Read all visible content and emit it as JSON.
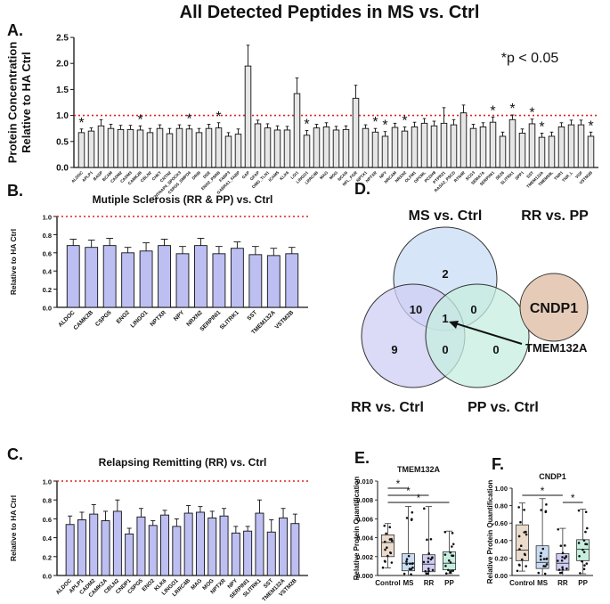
{
  "figure": {
    "title": "All Detected Peptides in MS vs. Ctrl",
    "sig_note": "*p < 0.05",
    "sig_marker": "*",
    "colors": {
      "bar_light": "#e6e6e6",
      "bar_purple": "#bdbff2",
      "ref_line": "#e0201b",
      "box_brown": "#eadbcc",
      "box_blue": "#c8dcf4",
      "box_purple": "#cfcdf4",
      "box_teal": "#c6eedf",
      "pp_circle": "#e6ccb8"
    }
  },
  "chart_data": [
    {
      "panel": "A.",
      "type": "bar",
      "ylabel": "Protein Concentration Relative to HA Ctrl",
      "ylim": [
        0,
        2.5
      ],
      "yticks": [
        "0.0",
        "0.5",
        "1.0",
        "1.5",
        "2.0",
        "2.5"
      ],
      "reference_line": 1.0,
      "categories": [
        "ALDOC",
        "APLP1",
        "BASP",
        "BCAM",
        "CADM2",
        "CADM3",
        "CAMK2B",
        "CBLN2",
        "CHKT",
        "CNTN2",
        "CNTNAP4_SPOCK3",
        "CSPG5_SMPD4",
        "DRIB",
        "DSE",
        "ENO2_PSRB",
        "FABP3",
        "GABRA1_FABP",
        "GAP",
        "GFAP",
        "OMG_TLN1",
        "ICAM5",
        "KLK6",
        "LGI1",
        "LINGO1",
        "LRRC4B",
        "MAG",
        "MOG",
        "NCAN",
        "NFL_FGR",
        "NPTX1",
        "NPTXR",
        "NPY",
        "NRCAM",
        "NRXN2",
        "OLFM1",
        "OPCML",
        "PCDH8",
        "PTPRZ1",
        "RASA2_PSCD",
        "RTN4R",
        "SCG3",
        "SEMA7A",
        "SERPINI1",
        "SEZ6",
        "SLITRK1",
        "SPP1",
        "SST",
        "TMEM132A",
        "TMEM59L",
        "TNR1",
        "TNR_L",
        "VGF",
        "VSTM2B"
      ],
      "values": [
        0.67,
        0.7,
        0.8,
        0.75,
        0.73,
        0.73,
        0.72,
        0.67,
        0.75,
        0.65,
        0.75,
        0.74,
        0.67,
        0.75,
        0.76,
        0.6,
        0.64,
        1.95,
        0.84,
        0.76,
        0.72,
        0.72,
        1.42,
        0.62,
        0.76,
        0.78,
        0.72,
        0.73,
        1.33,
        0.75,
        0.68,
        0.6,
        0.77,
        0.7,
        0.78,
        0.85,
        0.8,
        0.85,
        0.82,
        1.05,
        0.75,
        0.78,
        0.87,
        0.6,
        0.92,
        0.66,
        0.84,
        0.58,
        0.6,
        0.78,
        0.82,
        0.82,
        0.6
      ],
      "errors": [
        0.07,
        0.06,
        0.12,
        0.08,
        0.08,
        0.08,
        0.08,
        0.08,
        0.07,
        0.1,
        0.07,
        0.07,
        0.08,
        0.08,
        0.1,
        0.07,
        0.1,
        0.4,
        0.07,
        0.08,
        0.08,
        0.07,
        0.3,
        0.09,
        0.07,
        0.08,
        0.07,
        0.07,
        0.25,
        0.07,
        0.07,
        0.09,
        0.08,
        0.08,
        0.09,
        0.09,
        0.09,
        0.3,
        0.1,
        0.15,
        0.08,
        0.08,
        0.1,
        0.08,
        0.09,
        0.08,
        0.09,
        0.08,
        0.08,
        0.08,
        0.09,
        0.09,
        0.08
      ],
      "significant": [
        "ALDOC",
        "CAMK2B",
        "CSPG5_SMPD4",
        "ENO2_PSRB",
        "LINGO1",
        "NPTXR",
        "NPY",
        "NRXN2",
        "SERPINI1",
        "SLITRK1",
        "SST",
        "TMEM132A",
        "VSTM2B"
      ]
    },
    {
      "panel": "B.",
      "type": "bar",
      "title": "Mutiple Sclerosis (RR & PP) vs. Ctrl",
      "ylabel": "Relative to HA Ctrl",
      "ylim": [
        0,
        1.0
      ],
      "yticks": [
        "0.0",
        "0.2",
        "0.4",
        "0.6",
        "0.8",
        "1.0"
      ],
      "reference_line": 1.0,
      "categories": [
        "ALDOC",
        "CAMK2B",
        "CSPG5",
        "ENO2",
        "LINGO1",
        "NPTXR",
        "NPY",
        "NRXN2",
        "SERPINI1",
        "SLITRK1",
        "SST",
        "TMEM132A",
        "VSTM2B"
      ],
      "values": [
        0.68,
        0.66,
        0.68,
        0.6,
        0.62,
        0.68,
        0.59,
        0.68,
        0.59,
        0.65,
        0.58,
        0.57,
        0.59
      ],
      "errors": [
        0.07,
        0.08,
        0.08,
        0.06,
        0.09,
        0.07,
        0.08,
        0.08,
        0.08,
        0.07,
        0.09,
        0.08,
        0.07
      ]
    },
    {
      "panel": "C.",
      "type": "bar",
      "title": "Relapsing Remitting (RR) vs. Ctrl",
      "ylabel": "Relative to HA Ctrl",
      "ylim": [
        0,
        1.0
      ],
      "yticks": [
        "0.0",
        "0.2",
        "0.4",
        "0.6",
        "0.8",
        "1.0"
      ],
      "reference_line": 1.0,
      "categories": [
        "ALDOC",
        "APLP1",
        "CADM2",
        "CAMK2A",
        "CBLN2",
        "CNDP1",
        "CSPG5",
        "ENO2",
        "KLK6",
        "LINGO1",
        "LRRC4B",
        "MAG",
        "MOG",
        "NPTXR",
        "NPY",
        "SERPINI1",
        "SLITRK1",
        "SST",
        "TMEM132A",
        "VSTM2B"
      ],
      "values": [
        0.54,
        0.59,
        0.65,
        0.58,
        0.68,
        0.44,
        0.62,
        0.53,
        0.64,
        0.52,
        0.66,
        0.67,
        0.61,
        0.63,
        0.45,
        0.47,
        0.66,
        0.46,
        0.61,
        0.55
      ],
      "errors": [
        0.09,
        0.08,
        0.1,
        0.1,
        0.12,
        0.06,
        0.09,
        0.05,
        0.05,
        0.08,
        0.08,
        0.06,
        0.07,
        0.08,
        0.07,
        0.05,
        0.14,
        0.13,
        0.1,
        0.1
      ]
    },
    {
      "panel": "E.",
      "type": "box",
      "title": "TMEM132A",
      "ylabel": "Relative Protein Quantification",
      "ylim": [
        0,
        0.01
      ],
      "yticks": [
        "0.000",
        "0.002",
        "0.004",
        "0.006",
        "0.008",
        "0.010"
      ],
      "categories": [
        "Control",
        "MS",
        "RR",
        "PP"
      ],
      "boxes": [
        {
          "min": 0.0008,
          "q1": 0.002,
          "median": 0.0035,
          "q3": 0.0043,
          "max": 0.0055
        },
        {
          "min": 0.0,
          "q1": 0.0005,
          "median": 0.0013,
          "q3": 0.0023,
          "max": 0.0073
        },
        {
          "min": 0.0,
          "q1": 0.0004,
          "median": 0.0012,
          "q3": 0.0022,
          "max": 0.0073
        },
        {
          "min": 0.0002,
          "q1": 0.0006,
          "median": 0.0013,
          "q3": 0.0025,
          "max": 0.0047
        }
      ],
      "significance": [
        [
          "Control",
          "MS"
        ],
        [
          "Control",
          "RR"
        ],
        [
          "Control",
          "PP"
        ]
      ]
    },
    {
      "panel": "F.",
      "type": "box",
      "title": "CNDP1",
      "ylabel": "Relative Protein Quantification",
      "ylim": [
        0,
        1.0
      ],
      "yticks": [
        "0.00",
        "0.20",
        "0.40",
        "0.60",
        "0.80",
        "1.00"
      ],
      "categories": [
        "Control",
        "MS",
        "RR",
        "PP"
      ],
      "boxes": [
        {
          "min": 0.05,
          "q1": 0.17,
          "median": 0.29,
          "q3": 0.58,
          "max": 0.83
        },
        {
          "min": 0.0,
          "q1": 0.08,
          "median": 0.15,
          "q3": 0.34,
          "max": 0.88
        },
        {
          "min": 0.0,
          "q1": 0.06,
          "median": 0.14,
          "q3": 0.25,
          "max": 0.54
        },
        {
          "min": 0.02,
          "q1": 0.17,
          "median": 0.3,
          "q3": 0.41,
          "max": 0.76
        }
      ],
      "significance": [
        [
          "Control",
          "RR"
        ],
        [
          "RR",
          "PP"
        ]
      ]
    }
  ],
  "venn": {
    "panel": "D.",
    "labels": {
      "ms": "MS vs. Ctrl",
      "rr": "RR vs. Ctrl",
      "pp": "PP vs. Ctrl",
      "rr_pp": "RR vs. PP"
    },
    "counts": {
      "ms_only": "2",
      "ms_rr": "10",
      "ms_pp": "0",
      "all": "1",
      "rr_only": "9",
      "rr_pp": "0",
      "pp_only": "0"
    },
    "pp_unique": "CNDP1",
    "callout": "TMEM132A"
  }
}
